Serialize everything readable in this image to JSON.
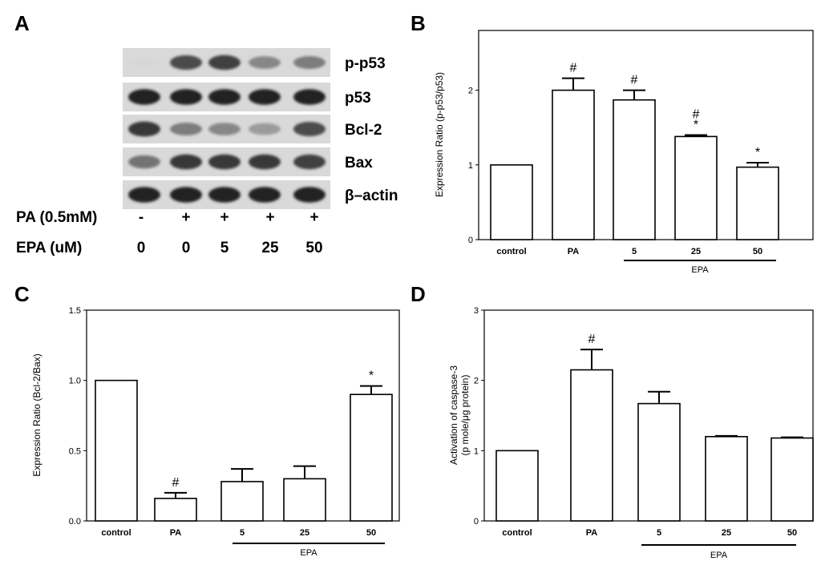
{
  "panel_letters": {
    "A": "A",
    "B": "B",
    "C": "C",
    "D": "D"
  },
  "blot": {
    "bands": [
      {
        "label": "p-p53",
        "intensity": [
          0.05,
          0.75,
          0.8,
          0.45,
          0.5
        ]
      },
      {
        "label": "p53",
        "intensity": [
          0.95,
          0.95,
          0.95,
          0.95,
          0.95
        ]
      },
      {
        "label": "Bcl-2",
        "intensity": [
          0.85,
          0.5,
          0.45,
          0.35,
          0.75
        ]
      },
      {
        "label": "Bax",
        "intensity": [
          0.55,
          0.85,
          0.85,
          0.85,
          0.8
        ]
      },
      {
        "label": "β–actin",
        "intensity": [
          0.95,
          0.95,
          0.95,
          0.95,
          0.95
        ]
      }
    ],
    "conditions": [
      {
        "label": "PA (0.5mM)",
        "values": [
          "-",
          "+",
          "+",
          "+",
          "+"
        ]
      },
      {
        "label": "EPA (uM)",
        "values": [
          "0",
          "0",
          "5",
          "25",
          "50"
        ]
      }
    ]
  },
  "chart_data": [
    {
      "panel": "B",
      "type": "bar",
      "categories": [
        "control",
        "PA",
        "5",
        "25",
        "50"
      ],
      "values": [
        1.0,
        2.0,
        1.87,
        1.38,
        0.97
      ],
      "errors": [
        0,
        0.16,
        0.13,
        0.02,
        0.06
      ],
      "marks": [
        "",
        "#",
        "#",
        "#\n*",
        "*"
      ],
      "ylabel": "Expression Ratio  (p-p53/p53)",
      "ylim": [
        0,
        2.8
      ],
      "yticks": [
        "0",
        "1",
        "2"
      ],
      "group_label": "EPA"
    },
    {
      "panel": "C",
      "type": "bar",
      "categories": [
        "control",
        "PA",
        "5",
        "25",
        "50"
      ],
      "values": [
        1.0,
        0.16,
        0.28,
        0.3,
        0.9
      ],
      "errors": [
        0,
        0.04,
        0.09,
        0.09,
        0.06
      ],
      "marks": [
        "",
        "#",
        "",
        "",
        "*"
      ],
      "ylabel": "Expression Ratio  (Bcl-2/Bax)",
      "ylim": [
        0,
        1.5
      ],
      "yticks": [
        "0.0",
        "0.5",
        "1.0",
        "1.5"
      ],
      "group_label": "EPA"
    },
    {
      "panel": "D",
      "type": "bar",
      "categories": [
        "control",
        "PA",
        "5",
        "25",
        "50"
      ],
      "values": [
        1.0,
        2.15,
        1.67,
        1.2,
        1.18
      ],
      "errors": [
        0,
        0.29,
        0.17,
        0.01,
        0.01
      ],
      "marks": [
        "",
        "#",
        "",
        "",
        ""
      ],
      "ylabel": "Activation of caspase-3",
      "ylabel2": "(p mole/μg protein)",
      "ylim": [
        0,
        3
      ],
      "yticks": [
        "0",
        "1",
        "2",
        "3"
      ],
      "group_label": "EPA"
    }
  ]
}
